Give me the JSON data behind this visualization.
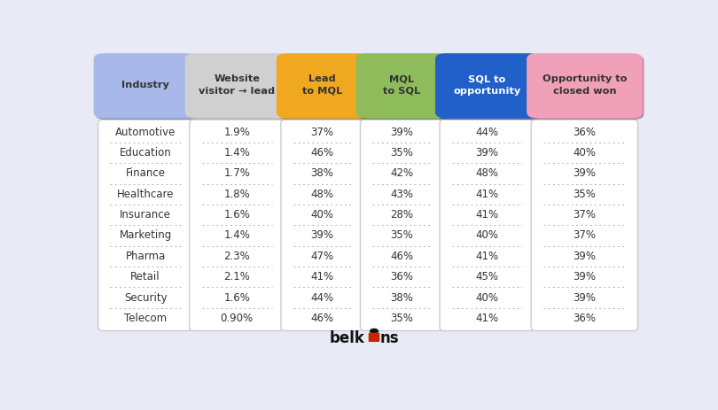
{
  "background_color": "#e8eaf6",
  "columns": [
    "Industry",
    "Website\nvisitor → lead",
    "Lead\nto MQL",
    "MQL\nto SQL",
    "SQL to\nopportunity",
    "Opportunity to\nclosed won"
  ],
  "header_colors": [
    "#a8b8e8",
    "#d0d0d0",
    "#f0a820",
    "#8fbc5a",
    "#2060c8",
    "#f0a0b8"
  ],
  "header_text_colors": [
    "#333333",
    "#333333",
    "#333333",
    "#333333",
    "#ffffff",
    "#333333"
  ],
  "header_border_colors": [
    "#7080b0",
    "#aaaaaa",
    "#c07010",
    "#5a8030",
    "#1040a0",
    "#c06080"
  ],
  "rows": [
    [
      "Automotive",
      "1.9%",
      "37%",
      "39%",
      "44%",
      "36%"
    ],
    [
      "Education",
      "1.4%",
      "46%",
      "35%",
      "39%",
      "40%"
    ],
    [
      "Finance",
      "1.7%",
      "38%",
      "42%",
      "48%",
      "39%"
    ],
    [
      "Healthcare",
      "1.8%",
      "48%",
      "43%",
      "41%",
      "35%"
    ],
    [
      "Insurance",
      "1.6%",
      "40%",
      "28%",
      "41%",
      "37%"
    ],
    [
      "Marketing",
      "1.4%",
      "39%",
      "35%",
      "40%",
      "37%"
    ],
    [
      "Pharma",
      "2.3%",
      "47%",
      "46%",
      "41%",
      "39%"
    ],
    [
      "Retail",
      "2.1%",
      "41%",
      "36%",
      "45%",
      "39%"
    ],
    [
      "Security",
      "1.6%",
      "44%",
      "38%",
      "40%",
      "39%"
    ],
    [
      "Telecom",
      "0.90%",
      "46%",
      "35%",
      "41%",
      "36%"
    ]
  ],
  "cell_bg": "#ffffff",
  "cell_border_color": "#cccccc",
  "separator_color": "#bbbbbb",
  "text_color": "#333333",
  "logo_color": "#111111",
  "logo_icon_color": "#cc2200"
}
